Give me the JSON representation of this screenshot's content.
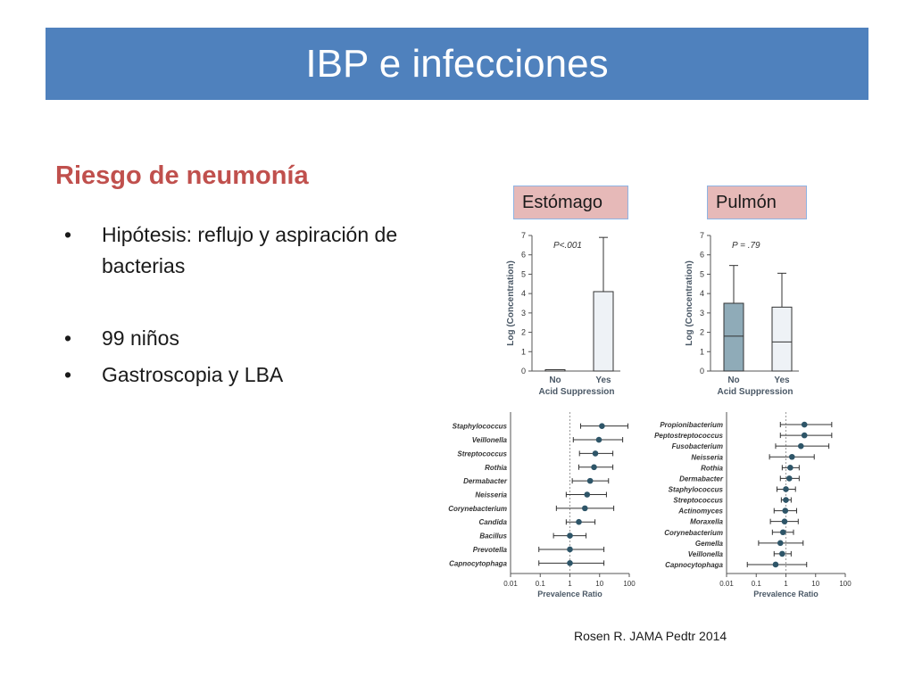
{
  "slide": {
    "title": "IBP e infecciones",
    "subtitle": "Riesgo de neumonía",
    "bullet_symbol": "•",
    "bullets": [
      "Hipótesis: reflujo y aspiración de bacterias",
      "99 niños",
      "Gastroscopia y LBA"
    ],
    "tags": {
      "stomach": "Estómago",
      "lung": "Pulmón"
    },
    "citation": "Rosen R. JAMA Pedtr 2014",
    "colors": {
      "title_bg": "#4f81bd",
      "subtitle": "#c0504d",
      "tag_bg": "#e6b9b8"
    }
  },
  "chart_data": [
    {
      "type": "boxplot",
      "panel": "Estómago",
      "annotation": "P<.001",
      "xlabel": "Acid Suppression",
      "ylabel": "Log (Concentration)",
      "ylim": [
        0,
        7
      ],
      "yticks": [
        "0",
        "1",
        "2",
        "3",
        "4",
        "5",
        "6",
        "7"
      ],
      "categories": [
        "No",
        "Yes"
      ],
      "boxes": [
        {
          "name": "No",
          "min": 0,
          "q1": 0,
          "median": 0,
          "q3": 0.05,
          "max": 0.05,
          "fill": "#ffffff"
        },
        {
          "name": "Yes",
          "min": 0,
          "q1": 0,
          "median": 0,
          "q3": 4.1,
          "max": 6.9,
          "fill": "#eef2f6"
        }
      ]
    },
    {
      "type": "boxplot",
      "panel": "Pulmón",
      "annotation": "P = .79",
      "xlabel": "Acid Suppression",
      "ylabel": "Log (Concentration)",
      "ylim": [
        0,
        7
      ],
      "yticks": [
        "0",
        "1",
        "2",
        "3",
        "4",
        "5",
        "6",
        "7"
      ],
      "categories": [
        "No",
        "Yes"
      ],
      "boxes": [
        {
          "name": "No",
          "min": 0,
          "q1": 0,
          "median": 1.8,
          "q3": 3.5,
          "max": 5.45,
          "fill": "#8fabb8"
        },
        {
          "name": "Yes",
          "min": 0,
          "q1": 0,
          "median": 1.5,
          "q3": 3.3,
          "max": 5.05,
          "fill": "#eef2f6"
        }
      ]
    },
    {
      "type": "forest",
      "panel": "Estómago",
      "xlabel": "Prevalence Ratio",
      "xscale": "log",
      "xlim": [
        0.01,
        100
      ],
      "xticks": [
        "0.01",
        "0.1",
        "1",
        "10",
        "100"
      ],
      "rows": [
        {
          "label": "Staphylococcus",
          "est": 12,
          "lo": 2.3,
          "hi": 90
        },
        {
          "label": "Veillonella",
          "est": 9.5,
          "lo": 1.3,
          "hi": 60
        },
        {
          "label": "Streptococcus",
          "est": 7.2,
          "lo": 2.1,
          "hi": 28
        },
        {
          "label": "Rothia",
          "est": 6.5,
          "lo": 2.0,
          "hi": 28
        },
        {
          "label": "Dermabacter",
          "est": 4.8,
          "lo": 1.2,
          "hi": 20
        },
        {
          "label": "Neisseria",
          "est": 3.8,
          "lo": 0.75,
          "hi": 17
        },
        {
          "label": "Corynebacterium",
          "est": 3.2,
          "lo": 0.35,
          "hi": 30
        },
        {
          "label": "Candida",
          "est": 2.0,
          "lo": 0.75,
          "hi": 7
        },
        {
          "label": "Bacillus",
          "est": 1.0,
          "lo": 0.28,
          "hi": 3.5
        },
        {
          "label": "Prevotella",
          "est": 1.0,
          "lo": 0.09,
          "hi": 14
        },
        {
          "label": "Capnocytophaga",
          "est": 1.0,
          "lo": 0.09,
          "hi": 14
        }
      ]
    },
    {
      "type": "forest",
      "panel": "Pulmón",
      "xlabel": "Prevalence Ratio",
      "xscale": "log",
      "xlim": [
        0.01,
        100
      ],
      "xticks": [
        "0.01",
        "0.1",
        "1",
        "10",
        "100"
      ],
      "rows": [
        {
          "label": "Propionibacterium",
          "est": 4.2,
          "lo": 0.65,
          "hi": 35
        },
        {
          "label": "Peptostreptococcus",
          "est": 4.2,
          "lo": 0.65,
          "hi": 35
        },
        {
          "label": "Fusobacterium",
          "est": 3.2,
          "lo": 0.45,
          "hi": 28
        },
        {
          "label": "Neisseria",
          "est": 1.6,
          "lo": 0.28,
          "hi": 9
        },
        {
          "label": "Rothia",
          "est": 1.4,
          "lo": 0.75,
          "hi": 2.8
        },
        {
          "label": "Dermabacter",
          "est": 1.3,
          "lo": 0.65,
          "hi": 2.8
        },
        {
          "label": "Staphylococcus",
          "est": 1.0,
          "lo": 0.5,
          "hi": 2.1
        },
        {
          "label": "Streptococcus",
          "est": 1.0,
          "lo": 0.7,
          "hi": 1.5
        },
        {
          "label": "Actinomyces",
          "est": 0.95,
          "lo": 0.4,
          "hi": 2.3
        },
        {
          "label": "Moraxella",
          "est": 0.9,
          "lo": 0.3,
          "hi": 2.6
        },
        {
          "label": "Corynebacterium",
          "est": 0.8,
          "lo": 0.35,
          "hi": 1.8
        },
        {
          "label": "Gemella",
          "est": 0.65,
          "lo": 0.12,
          "hi": 3.8
        },
        {
          "label": "Veillonella",
          "est": 0.75,
          "lo": 0.4,
          "hi": 1.5
        },
        {
          "label": "Capnocytophaga",
          "est": 0.45,
          "lo": 0.05,
          "hi": 5
        }
      ]
    }
  ]
}
